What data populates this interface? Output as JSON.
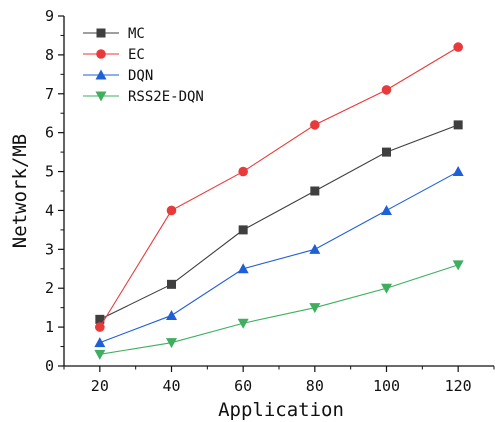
{
  "chart_data": {
    "type": "line",
    "x": [
      20,
      40,
      60,
      80,
      100,
      120
    ],
    "xlabel": "Application",
    "ylabel": "Network/MB",
    "xlim": [
      10,
      130
    ],
    "ylim": [
      0,
      9
    ],
    "x_ticks": [
      "20",
      "40",
      "60",
      "80",
      "100",
      "120"
    ],
    "y_ticks": [
      "0",
      "1",
      "2",
      "3",
      "4",
      "5",
      "6",
      "7",
      "8",
      "9"
    ],
    "grid": false,
    "legend_position": "top-left",
    "series": [
      {
        "name": "MC",
        "color": "#3f3f3f",
        "marker": "square",
        "values": [
          1.2,
          2.1,
          3.5,
          4.5,
          5.5,
          6.2
        ]
      },
      {
        "name": "EC",
        "color": "#e83a3a",
        "marker": "circle",
        "values": [
          1.0,
          4.0,
          5.0,
          6.2,
          7.1,
          8.2
        ]
      },
      {
        "name": "DQN",
        "color": "#1f5fd8",
        "marker": "triangle-up",
        "values": [
          0.6,
          1.3,
          2.5,
          3.0,
          4.0,
          5.0
        ]
      },
      {
        "name": "RSS2E-DQN",
        "color": "#3fae5f",
        "marker": "triangle-down",
        "values": [
          0.3,
          0.6,
          1.1,
          1.5,
          2.0,
          2.6
        ]
      }
    ]
  }
}
